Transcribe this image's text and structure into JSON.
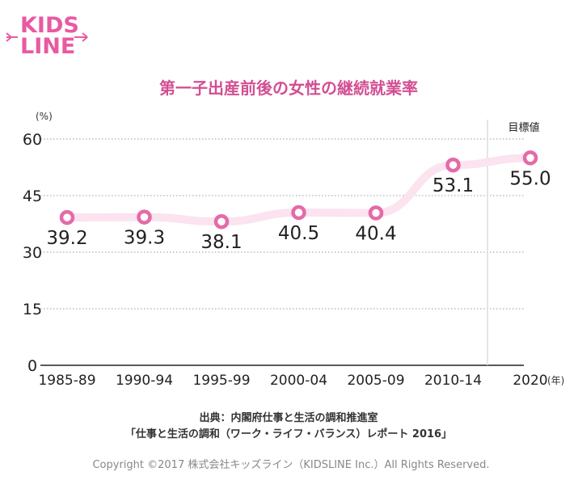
{
  "logo": {
    "line1": "KIDS",
    "line2": "LINE",
    "icon": "arrow-sparkle-icon"
  },
  "chart_data": {
    "type": "line",
    "title": "第一子出産前後の女性の継続就業率",
    "ylabel": "(%)",
    "xunit": "(年)",
    "categories": [
      "1985-89",
      "1990-94",
      "1995-99",
      "2000-04",
      "2005-09",
      "2010-14",
      "2020"
    ],
    "series": [
      {
        "values": [
          39.2,
          39.3,
          38.1,
          40.5,
          40.4,
          53.1,
          55.0
        ],
        "labels": [
          "39.2",
          "39.3",
          "38.1",
          "40.5",
          "40.4",
          "53.1",
          "55.0"
        ]
      }
    ],
    "yticks": [
      0,
      15,
      30,
      45,
      60
    ],
    "ylim": [
      0,
      60
    ],
    "grid": true,
    "target_label": "目標値",
    "colors": {
      "line": "#fbe3ef",
      "marker": "#e46ba8",
      "title": "#d24f93",
      "grid": "#999999"
    }
  },
  "source_line1": "出典：内閣府仕事と生活の調和推進室",
  "source_line2": "「仕事と生活の調和（ワーク・ライフ・バランス）レポート 2016」",
  "copyright": "Copyright ©2017 株式会社キッズライン（KIDSLINE Inc.）All Rights Reserved."
}
